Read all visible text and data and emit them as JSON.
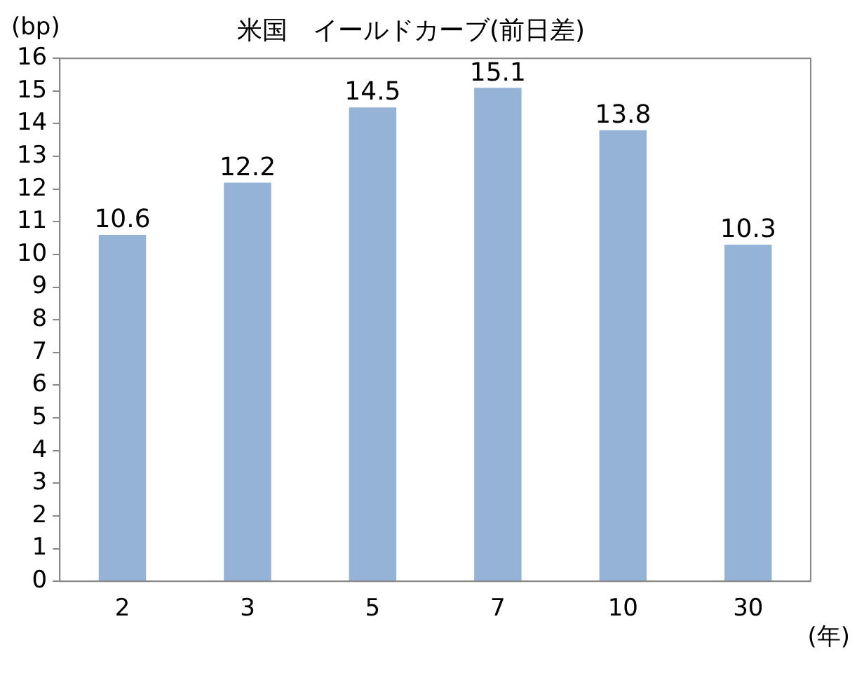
{
  "chart_data": {
    "type": "bar",
    "title": "米国　イールドカーブ(前日差)",
    "ylabel": "(bp)",
    "xlabel": "(年)",
    "categories": [
      "2",
      "3",
      "5",
      "7",
      "10",
      "30"
    ],
    "values": [
      10.6,
      12.2,
      14.5,
      15.1,
      13.8,
      10.3
    ],
    "color": "#95b3d7",
    "ylim": [
      0,
      16
    ],
    "yticks": [
      0,
      1,
      2,
      3,
      4,
      5,
      6,
      7,
      8,
      9,
      10,
      11,
      12,
      13,
      14,
      15,
      16
    ],
    "grid": false,
    "legend": false,
    "data_labels": true
  }
}
